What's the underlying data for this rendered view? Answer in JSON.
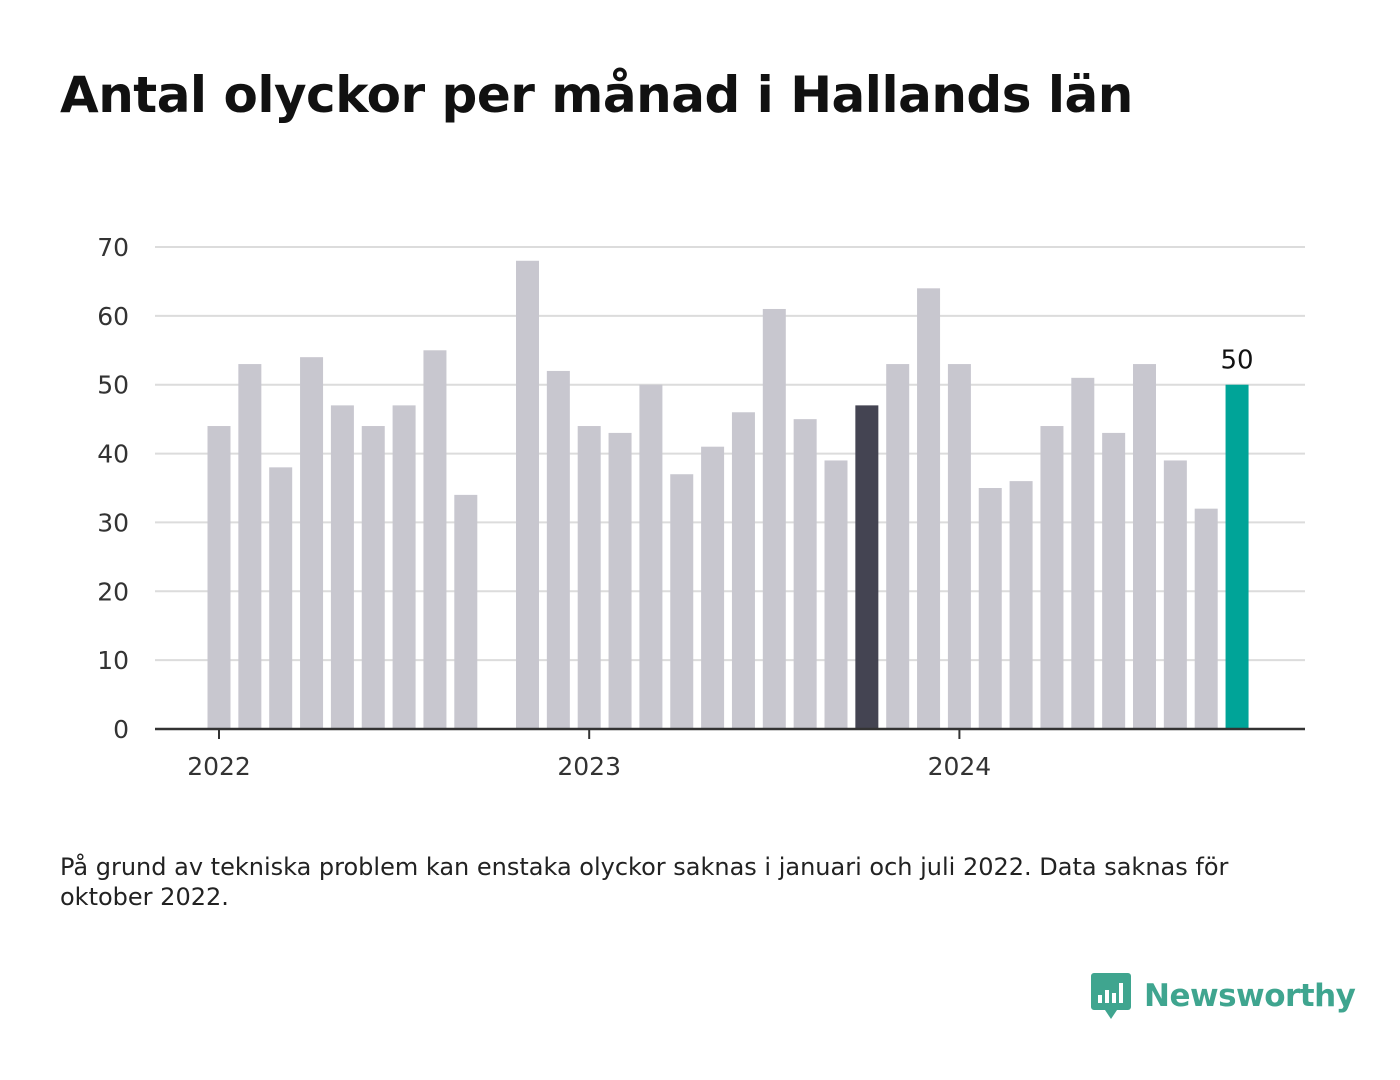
{
  "title": "Antal olyckor per månad i Hallands län",
  "footnote": "På grund av tekniska problem kan enstaka olyckor saknas i januari och juli 2022. Data saknas för oktober 2022.",
  "brand": {
    "name": "Newsworthy",
    "color": "#3fa58f"
  },
  "colors": {
    "bar": "#c8c7cf",
    "highlight": "#444452",
    "latest": "#00a498",
    "grid": "#dcdcdc",
    "axis": "#333333",
    "text": "#333333"
  },
  "chart_data": {
    "type": "bar",
    "title": "Antal olyckor per månad i Hallands län",
    "xlabel": "",
    "ylabel": "",
    "ylim": [
      0,
      70
    ],
    "yticks": [
      0,
      10,
      20,
      30,
      40,
      50,
      60,
      70
    ],
    "grid": true,
    "legend": "none",
    "x_tick_labels": [
      {
        "label": "2022",
        "at": "2022-01"
      },
      {
        "label": "2023",
        "at": "2023-01"
      },
      {
        "label": "2024",
        "at": "2024-01"
      }
    ],
    "categories": [
      "2022-01",
      "2022-02",
      "2022-03",
      "2022-04",
      "2022-05",
      "2022-06",
      "2022-07",
      "2022-08",
      "2022-09",
      "2022-10",
      "2022-11",
      "2022-12",
      "2023-01",
      "2023-02",
      "2023-03",
      "2023-04",
      "2023-05",
      "2023-06",
      "2023-07",
      "2023-08",
      "2023-09",
      "2023-10",
      "2023-11",
      "2023-12",
      "2024-01",
      "2024-02",
      "2024-03",
      "2024-04",
      "2024-05",
      "2024-06",
      "2024-07",
      "2024-08",
      "2024-09",
      "2024-10"
    ],
    "values": [
      44,
      53,
      38,
      54,
      47,
      44,
      47,
      55,
      34,
      null,
      68,
      52,
      44,
      43,
      50,
      37,
      41,
      46,
      61,
      45,
      39,
      47,
      53,
      64,
      53,
      35,
      36,
      44,
      51,
      43,
      53,
      39,
      32,
      50
    ],
    "highlight": "2023-10",
    "latest": "2024-10",
    "data_labels": [
      {
        "at": "2024-10",
        "text": "50"
      }
    ]
  }
}
